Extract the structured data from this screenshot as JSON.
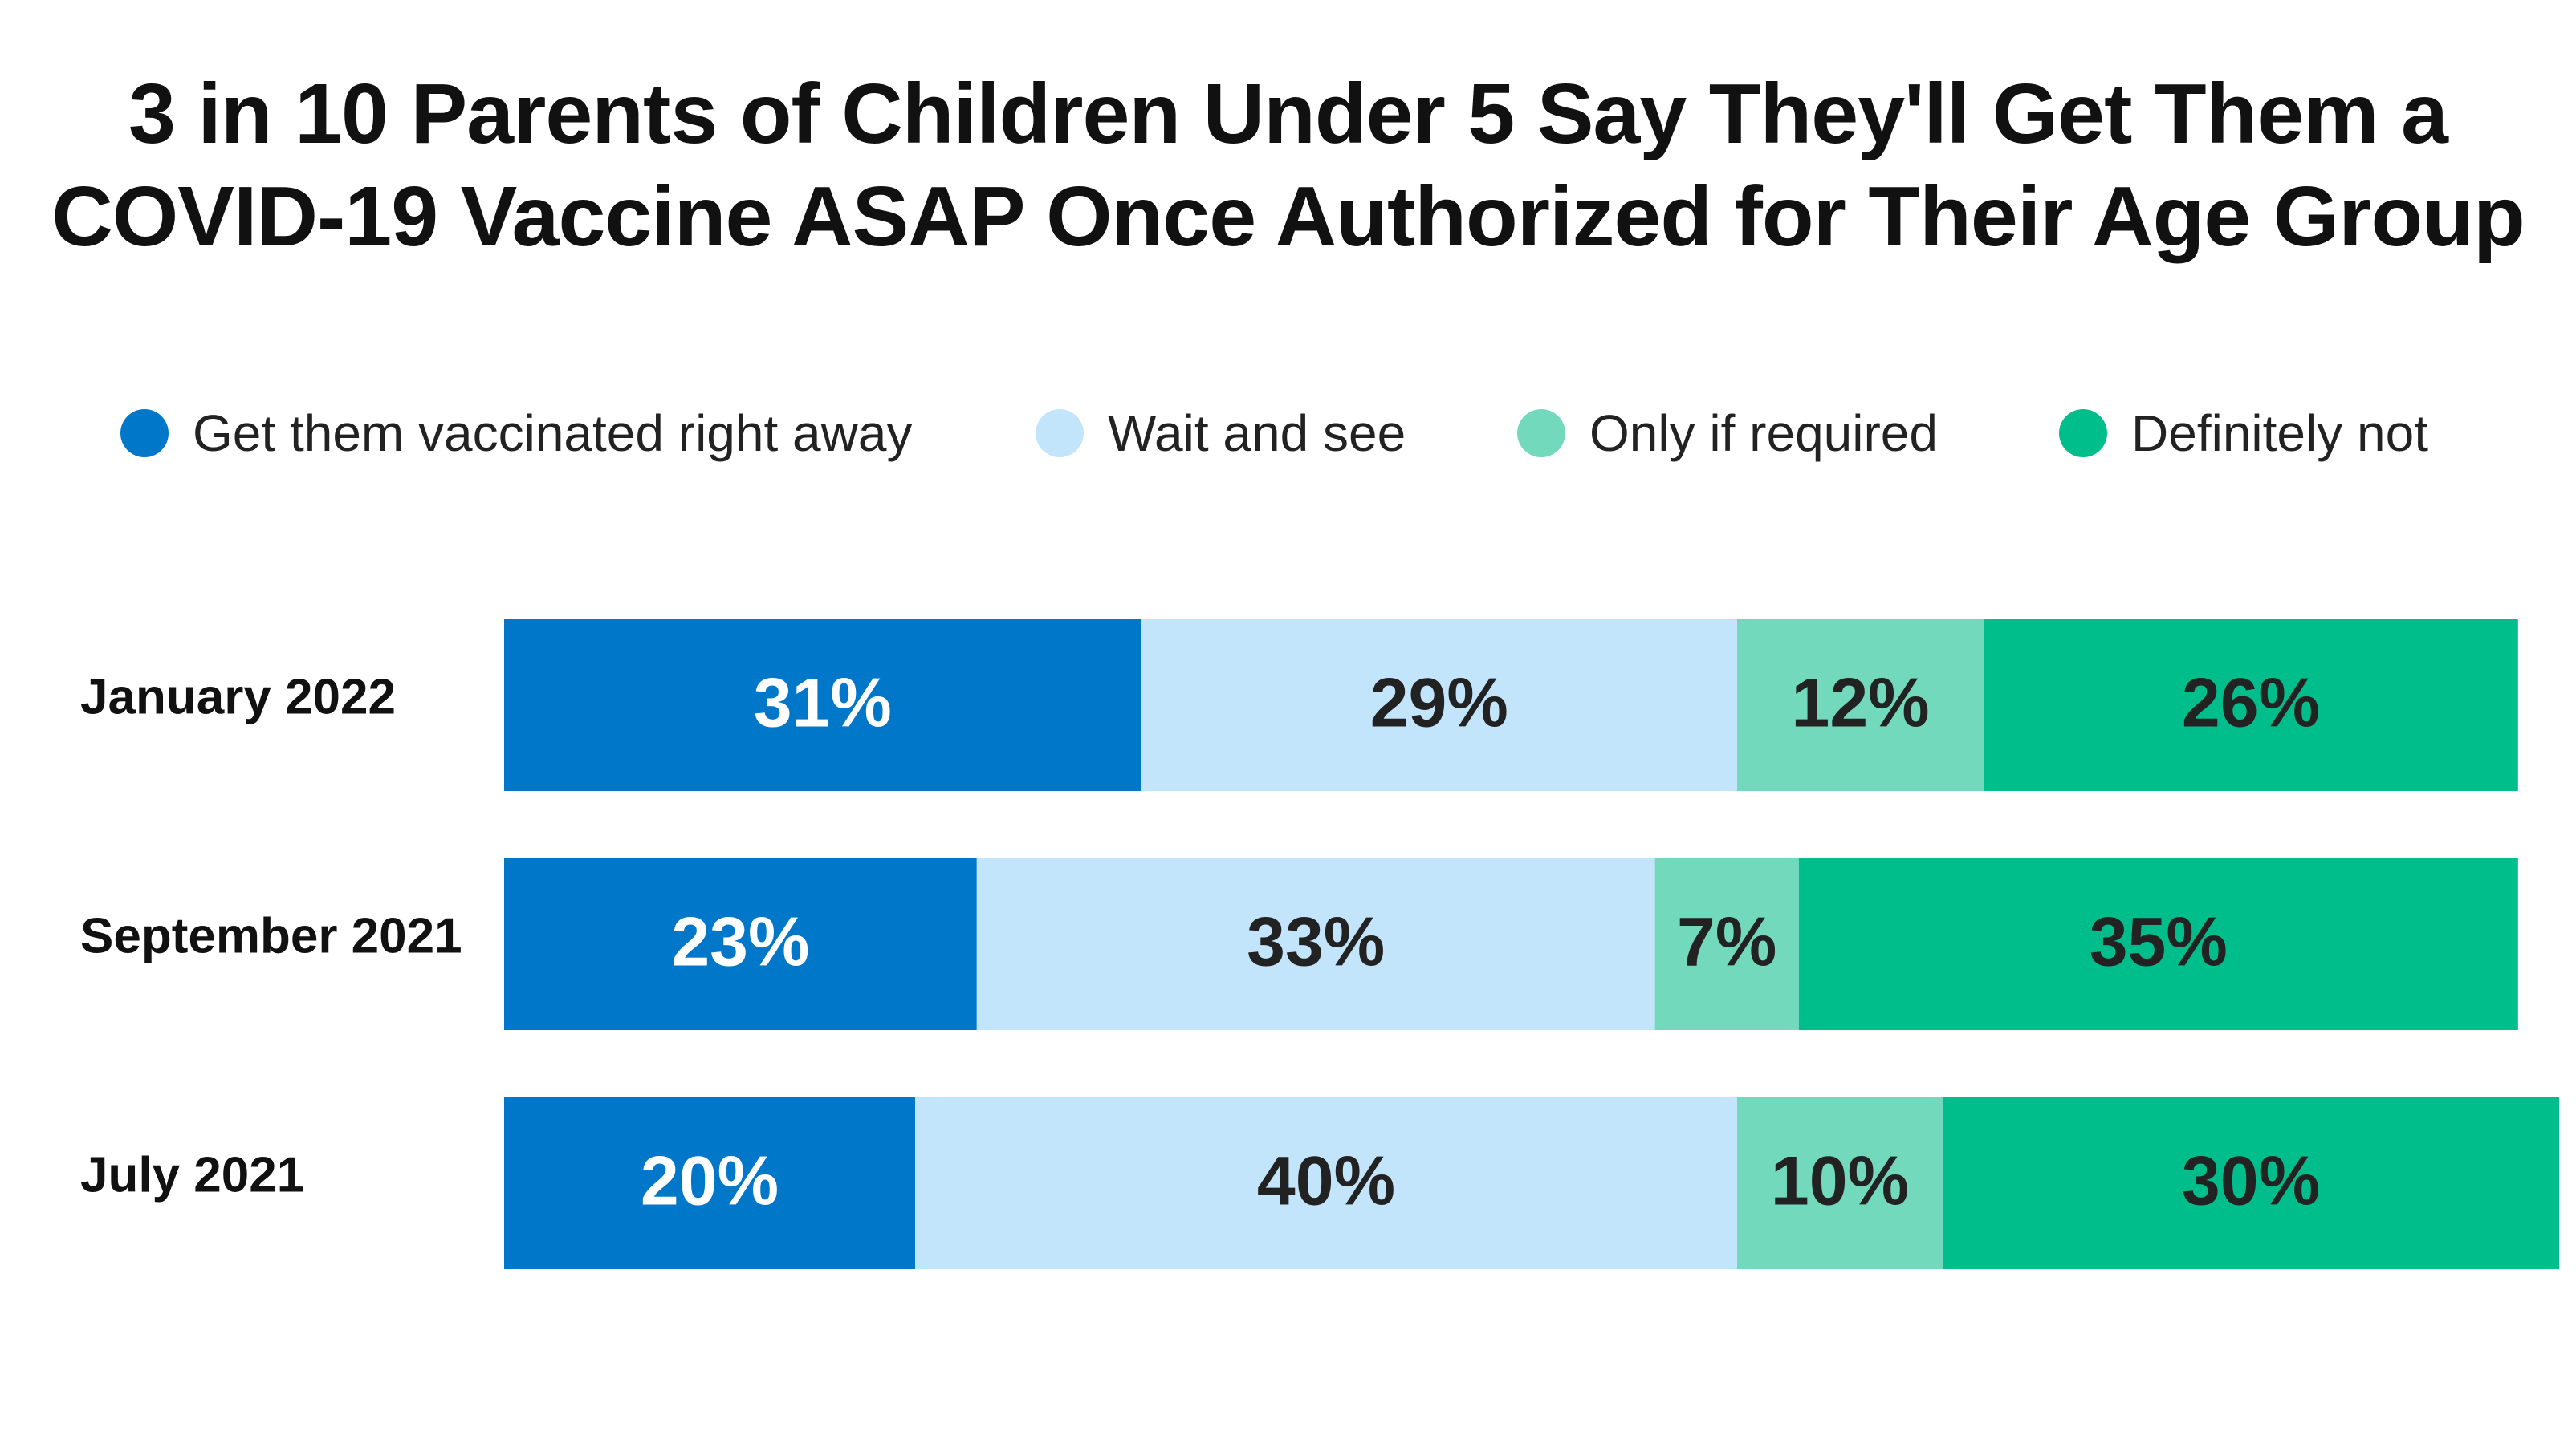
{
  "chart_data": {
    "type": "bar",
    "orientation": "horizontal",
    "stacked": true,
    "title": "3 in 10 Parents of Children Under 5 Say They'll Get Them a COVID-19 Vaccine ASAP Once Authorized for Their Age Group",
    "title_lines": [
      "3 in 10 Parents of Children Under 5 Say They'll Get Them a",
      "COVID-19 Vaccine ASAP Once Authorized for Their Age Group"
    ],
    "categories": [
      "January 2022",
      "September 2021",
      "July 2021"
    ],
    "series": [
      {
        "name": "Get them vaccinated right away",
        "color": "#0077C8",
        "label_color": "#ffffff",
        "values": [
          31,
          23,
          20
        ],
        "labels": [
          "31%",
          "23%",
          "20%"
        ]
      },
      {
        "name": "Wait and see",
        "color": "#C3E5FC",
        "label_color": "#222222",
        "values": [
          29,
          33,
          40
        ],
        "labels": [
          "29%",
          "33%",
          "40%"
        ]
      },
      {
        "name": "Only if required",
        "color": "#72D9BC",
        "label_color": "#222222",
        "values": [
          12,
          7,
          10
        ],
        "labels": [
          "12%",
          "7%",
          "10%"
        ]
      },
      {
        "name": "Definitely not",
        "color": "#00BE8C",
        "label_color": "#222222",
        "values": [
          26,
          35,
          30
        ],
        "labels": [
          "26%",
          "35%",
          "30%"
        ]
      }
    ],
    "legend_position": "top",
    "grid": false,
    "xlim": [
      0,
      100
    ]
  }
}
